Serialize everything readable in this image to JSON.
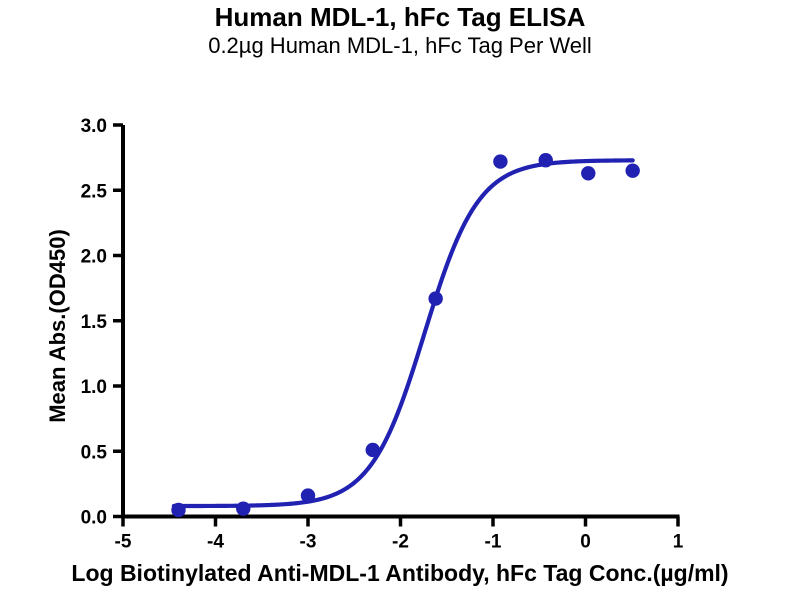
{
  "figure": {
    "title": "Human MDL-1, hFc Tag ELISA",
    "subtitle": "0.2µg Human MDL-1, hFc Tag Per Well",
    "background_color": "#ffffff",
    "text_color": "#000000"
  },
  "chart_data": {
    "type": "scatter",
    "title": "Human MDL-1, hFc Tag ELISA",
    "subtitle": "0.2µg Human MDL-1, hFc Tag Per Well",
    "xlabel": "Log Biotinylated Anti-MDL-1 Antibody, hFc Tag Conc.(µg/ml)",
    "ylabel": "Mean Abs.(OD450)",
    "xlim": [
      -5,
      1
    ],
    "ylim": [
      0,
      3
    ],
    "x_ticks": [
      -5,
      -4,
      -3,
      -2,
      -1,
      0,
      1
    ],
    "y_ticks": [
      0.0,
      0.5,
      1.0,
      1.5,
      2.0,
      2.5,
      3.0
    ],
    "y_tick_decimals": 1,
    "grid": false,
    "legend_position": "none",
    "axis_color": "#000000",
    "series": [
      {
        "name": "Biotinylated Anti-MDL-1 Antibody, hFc Tag",
        "color": "#2121b2",
        "marker": "circle",
        "points": [
          {
            "x": -4.4,
            "y": 0.05
          },
          {
            "x": -3.7,
            "y": 0.06
          },
          {
            "x": -3.0,
            "y": 0.16
          },
          {
            "x": -2.3,
            "y": 0.51
          },
          {
            "x": -1.62,
            "y": 1.67
          },
          {
            "x": -0.92,
            "y": 2.72
          },
          {
            "x": -0.43,
            "y": 2.73
          },
          {
            "x": 0.03,
            "y": 2.63
          },
          {
            "x": 0.51,
            "y": 2.65
          }
        ]
      }
    ],
    "fit_curve": {
      "model": "4PL",
      "bottom": 0.08,
      "top": 2.73,
      "log_ec50": -1.74,
      "hill_slope": 1.5,
      "x_start": -4.45,
      "x_end": 0.52,
      "color": "#2121b2"
    }
  }
}
